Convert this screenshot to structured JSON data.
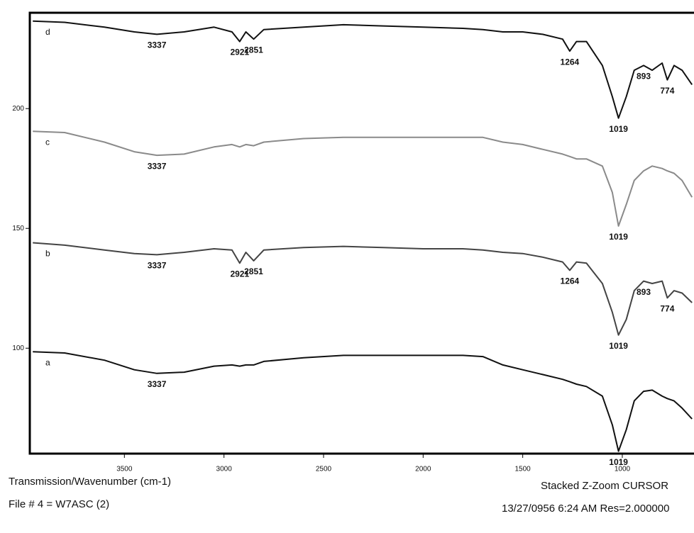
{
  "chart_data": {
    "type": "line",
    "xlabel": "Transmission/Wavenumber (cm-1)",
    "file_label": "File # 4 = W7ASC (2)",
    "mode_label": "Stacked  Z-Zoom  CURSOR",
    "status_label": "13/27/0956  6:24  AM  Res=2.000000",
    "x": [
      3960,
      3800,
      3600,
      3450,
      3337,
      3200,
      3050,
      2960,
      2921,
      2890,
      2851,
      2800,
      2600,
      2400,
      2200,
      2000,
      1800,
      1700,
      1600,
      1500,
      1400,
      1300,
      1264,
      1230,
      1180,
      1100,
      1050,
      1019,
      980,
      940,
      893,
      850,
      800,
      774,
      740,
      700,
      650
    ],
    "series": [
      {
        "name": "d",
        "color": "#111111",
        "peaks": [
          3337,
          2921,
          2851,
          1264,
          1019,
          893,
          774
        ],
        "values": [
          236.5,
          236,
          234,
          232,
          231,
          232,
          234,
          232,
          228,
          232,
          229,
          233,
          234,
          235,
          234.5,
          234,
          233.5,
          233,
          232,
          232,
          231,
          229,
          224,
          228,
          228,
          218,
          205,
          196,
          205,
          216,
          218,
          216,
          219,
          212,
          218,
          216,
          210
        ]
      },
      {
        "name": "c",
        "color": "#8a8a8a",
        "peaks": [
          3337,
          1019
        ],
        "values": [
          190.5,
          190,
          186,
          182,
          180.5,
          181,
          184,
          185,
          184,
          185,
          184.5,
          186,
          187.5,
          188,
          188,
          188,
          188,
          188,
          186,
          185,
          183,
          181,
          180,
          179,
          179,
          176,
          165,
          151,
          160,
          170,
          174,
          176,
          175,
          174,
          173,
          170,
          163
        ]
      },
      {
        "name": "b",
        "color": "#444444",
        "peaks": [
          3337,
          2921,
          2851,
          1264,
          1019,
          893,
          774
        ],
        "values": [
          144,
          143,
          141,
          139.5,
          139,
          140,
          141.5,
          141,
          135.5,
          140,
          136.5,
          141,
          142,
          142.5,
          142,
          141.5,
          141.5,
          141,
          140,
          139.5,
          138,
          136,
          132.5,
          136,
          135.5,
          127,
          115,
          105.5,
          112,
          124,
          128,
          127,
          128,
          121,
          124,
          123,
          119
        ]
      },
      {
        "name": "a",
        "color": "#111111",
        "peaks": [
          3337,
          1019
        ],
        "values": [
          98.5,
          98,
          95,
          91,
          89.5,
          90,
          92.5,
          93,
          92.5,
          93,
          93,
          94.5,
          96,
          97,
          97,
          97,
          97,
          96.5,
          93,
          91,
          89,
          87,
          86,
          85,
          84,
          80,
          68,
          57,
          66,
          78,
          82,
          82.5,
          80,
          79,
          78,
          75,
          70.5
        ]
      }
    ],
    "xlim": [
      3975,
      640
    ],
    "xticks": [
      3500,
      3000,
      2500,
      2000,
      1500,
      1000
    ],
    "ylim": [
      56,
      240
    ],
    "yticks": [
      100,
      150,
      200
    ]
  }
}
